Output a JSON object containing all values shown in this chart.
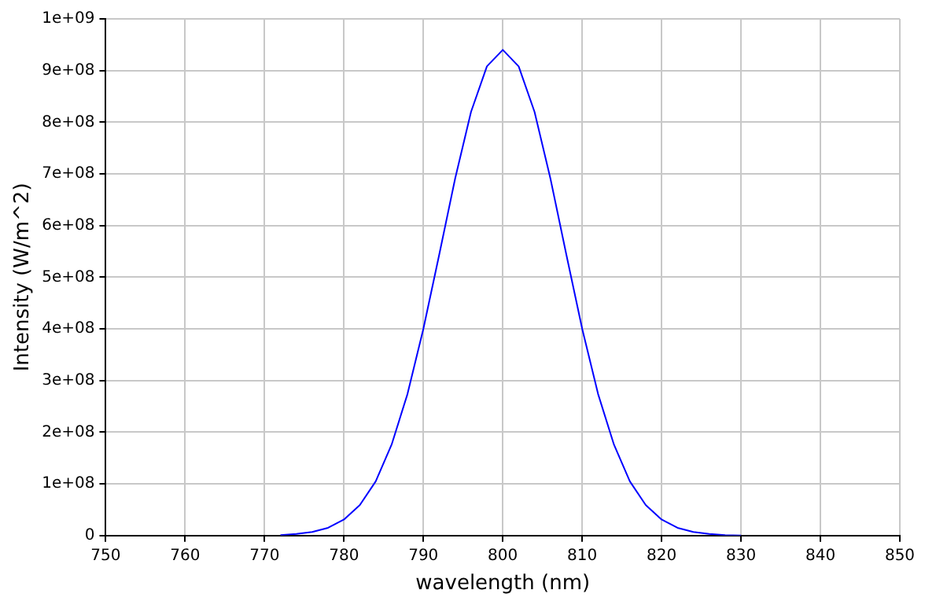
{
  "chart_data": {
    "type": "line",
    "xlabel": "wavelength (nm)",
    "ylabel": "Intensity (W/m^2)",
    "x": [
      772,
      774,
      776,
      778,
      780,
      782,
      784,
      786,
      788,
      790,
      792,
      794,
      796,
      798,
      800,
      802,
      804,
      806,
      808,
      810,
      812,
      814,
      816,
      818,
      820,
      822,
      824,
      826,
      828,
      830
    ],
    "series": [
      {
        "color": "#0000ff",
        "values": [
          1000000,
          3000000,
          7000000,
          15000000,
          31000000,
          59000000,
          105000000,
          176000000,
          274000000,
          400000000,
          544000000,
          691000000,
          820000000,
          908000000,
          940000000,
          908000000,
          820000000,
          691000000,
          544000000,
          400000000,
          274000000,
          176000000,
          105000000,
          59000000,
          31000000,
          15000000,
          7000000,
          3000000,
          1000000,
          0
        ]
      }
    ],
    "xlim": [
      750,
      850
    ],
    "xticks": [
      750,
      760,
      770,
      780,
      790,
      800,
      810,
      820,
      830,
      840,
      850
    ],
    "ylim": [
      0,
      1000000000
    ],
    "yticks": [
      0,
      {
        "value": 100000000,
        "label": "1e+08"
      },
      {
        "value": 200000000,
        "label": "2e+08"
      },
      {
        "value": 300000000,
        "label": "3e+08"
      },
      {
        "value": 400000000,
        "label": "4e+08"
      },
      {
        "value": 500000000,
        "label": "5e+08"
      },
      {
        "value": 600000000,
        "label": "6e+08"
      },
      {
        "value": 700000000,
        "label": "7e+08"
      },
      {
        "value": 800000000,
        "label": "8e+08"
      },
      {
        "value": 900000000,
        "label": "9e+08"
      },
      {
        "value": 1000000000,
        "label": "1e+09"
      }
    ],
    "grid": true,
    "marker": "none",
    "line_style": "solid",
    "legend": false
  }
}
